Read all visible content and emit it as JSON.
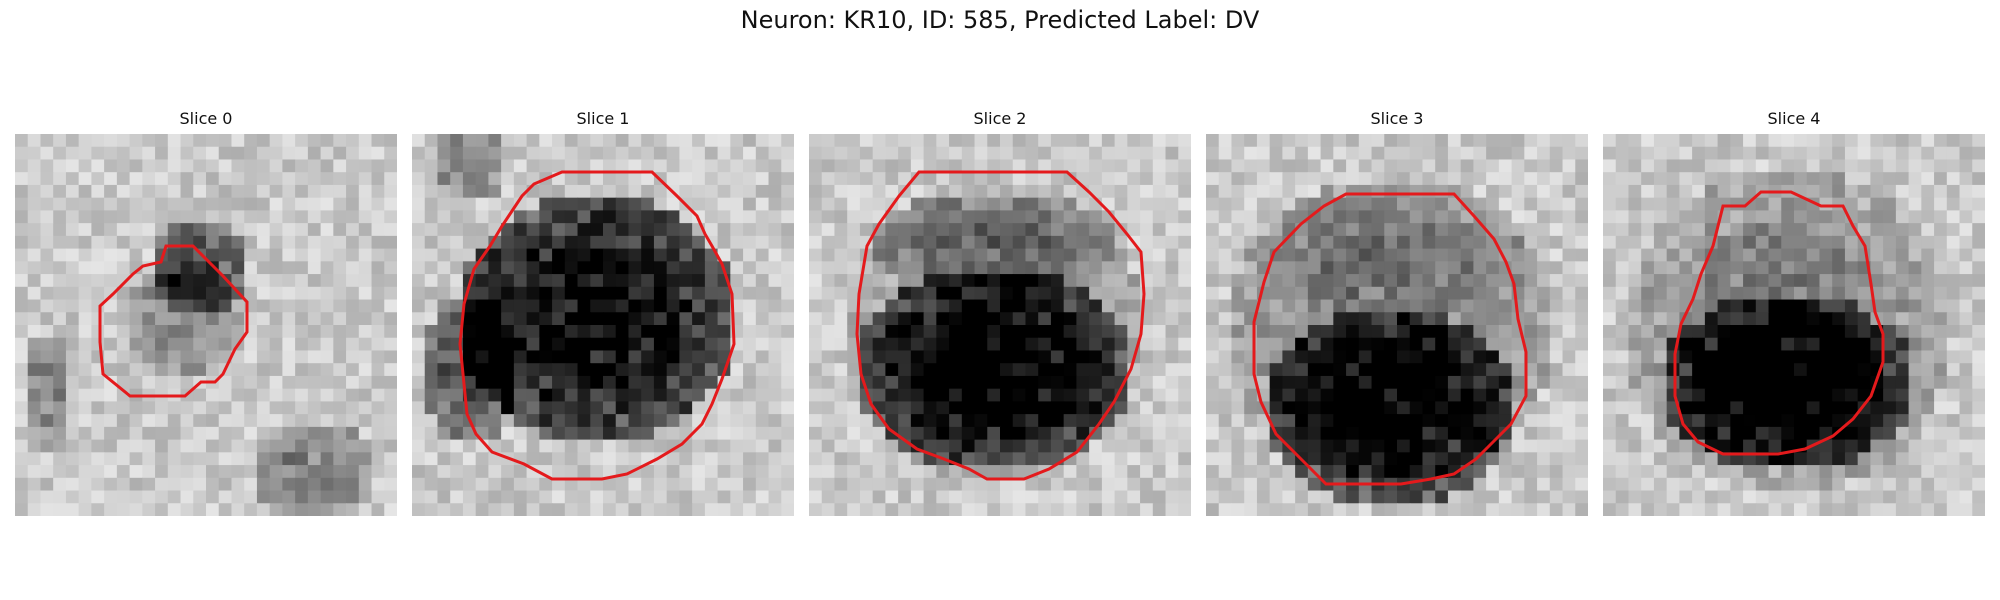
{
  "figure": {
    "title": "Neuron: KR10, ID: 585, Predicted Label: DV",
    "outline_color": "#e41a1c",
    "panels": [
      {
        "title": "Slice 0"
      },
      {
        "title": "Slice 1"
      },
      {
        "title": "Slice 2"
      },
      {
        "title": "Slice 3"
      },
      {
        "title": "Slice 4"
      }
    ]
  }
}
